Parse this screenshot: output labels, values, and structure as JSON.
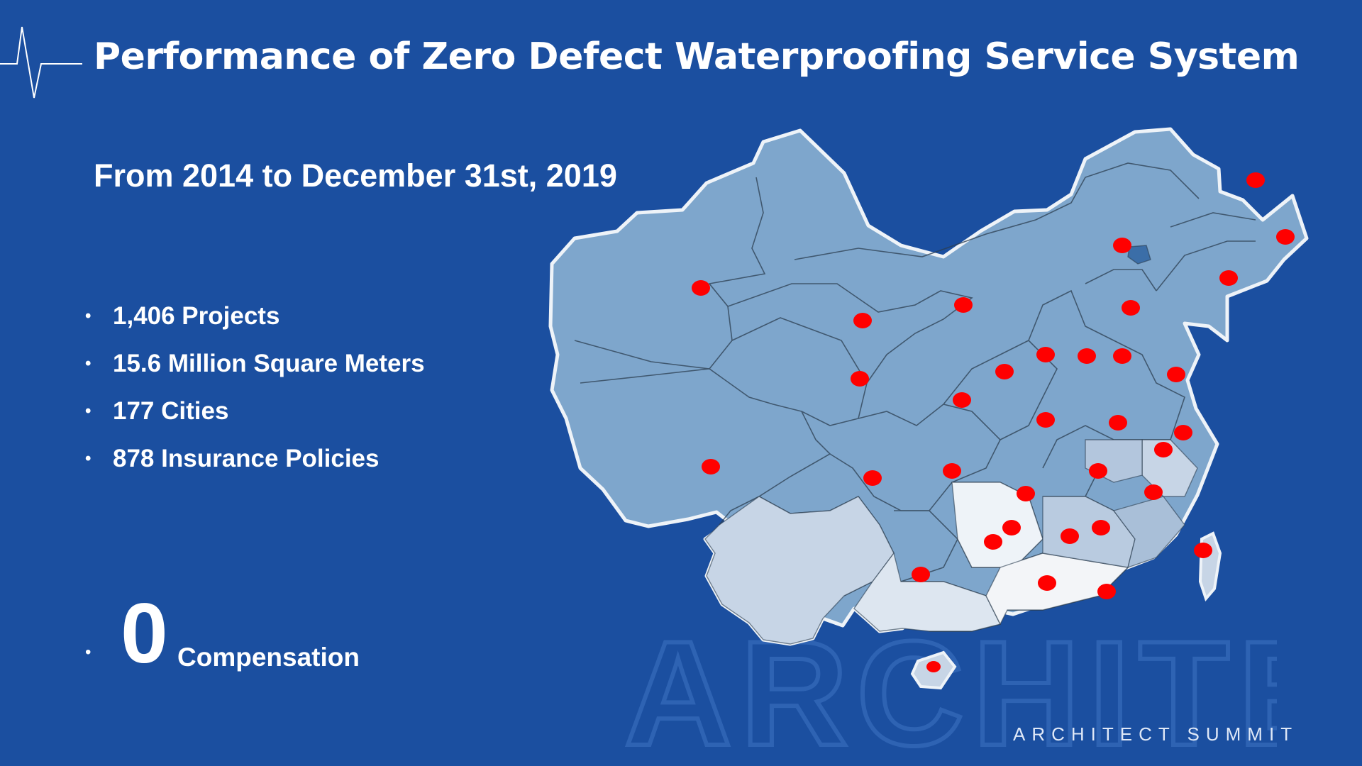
{
  "slide": {
    "title": "Performance of Zero Defect Waterproofing Service System",
    "subtitle": "From 2014 to December 31st, 2019",
    "stats": [
      {
        "text": "1,406 Projects"
      },
      {
        "text": "15.6 Million Square Meters"
      },
      {
        "text": "177 Cities"
      },
      {
        "text": "878 Insurance Policies"
      }
    ],
    "bullet_char": "•",
    "zero": {
      "number": "0",
      "label": "Compensation"
    },
    "footer": "ARCHITECT SUMMIT",
    "watermark_text": "ARCHITECT"
  },
  "colors": {
    "background": "#1b4fa0",
    "province_fill": "#7ea6cc",
    "province_light": "#c7d5e6",
    "province_pale": "#eef3f8",
    "marker": "#ff0000"
  },
  "icons": {
    "logo": "heartbeat-pulse-icon",
    "map": "china-province-map",
    "marker": "red-dot-marker"
  }
}
